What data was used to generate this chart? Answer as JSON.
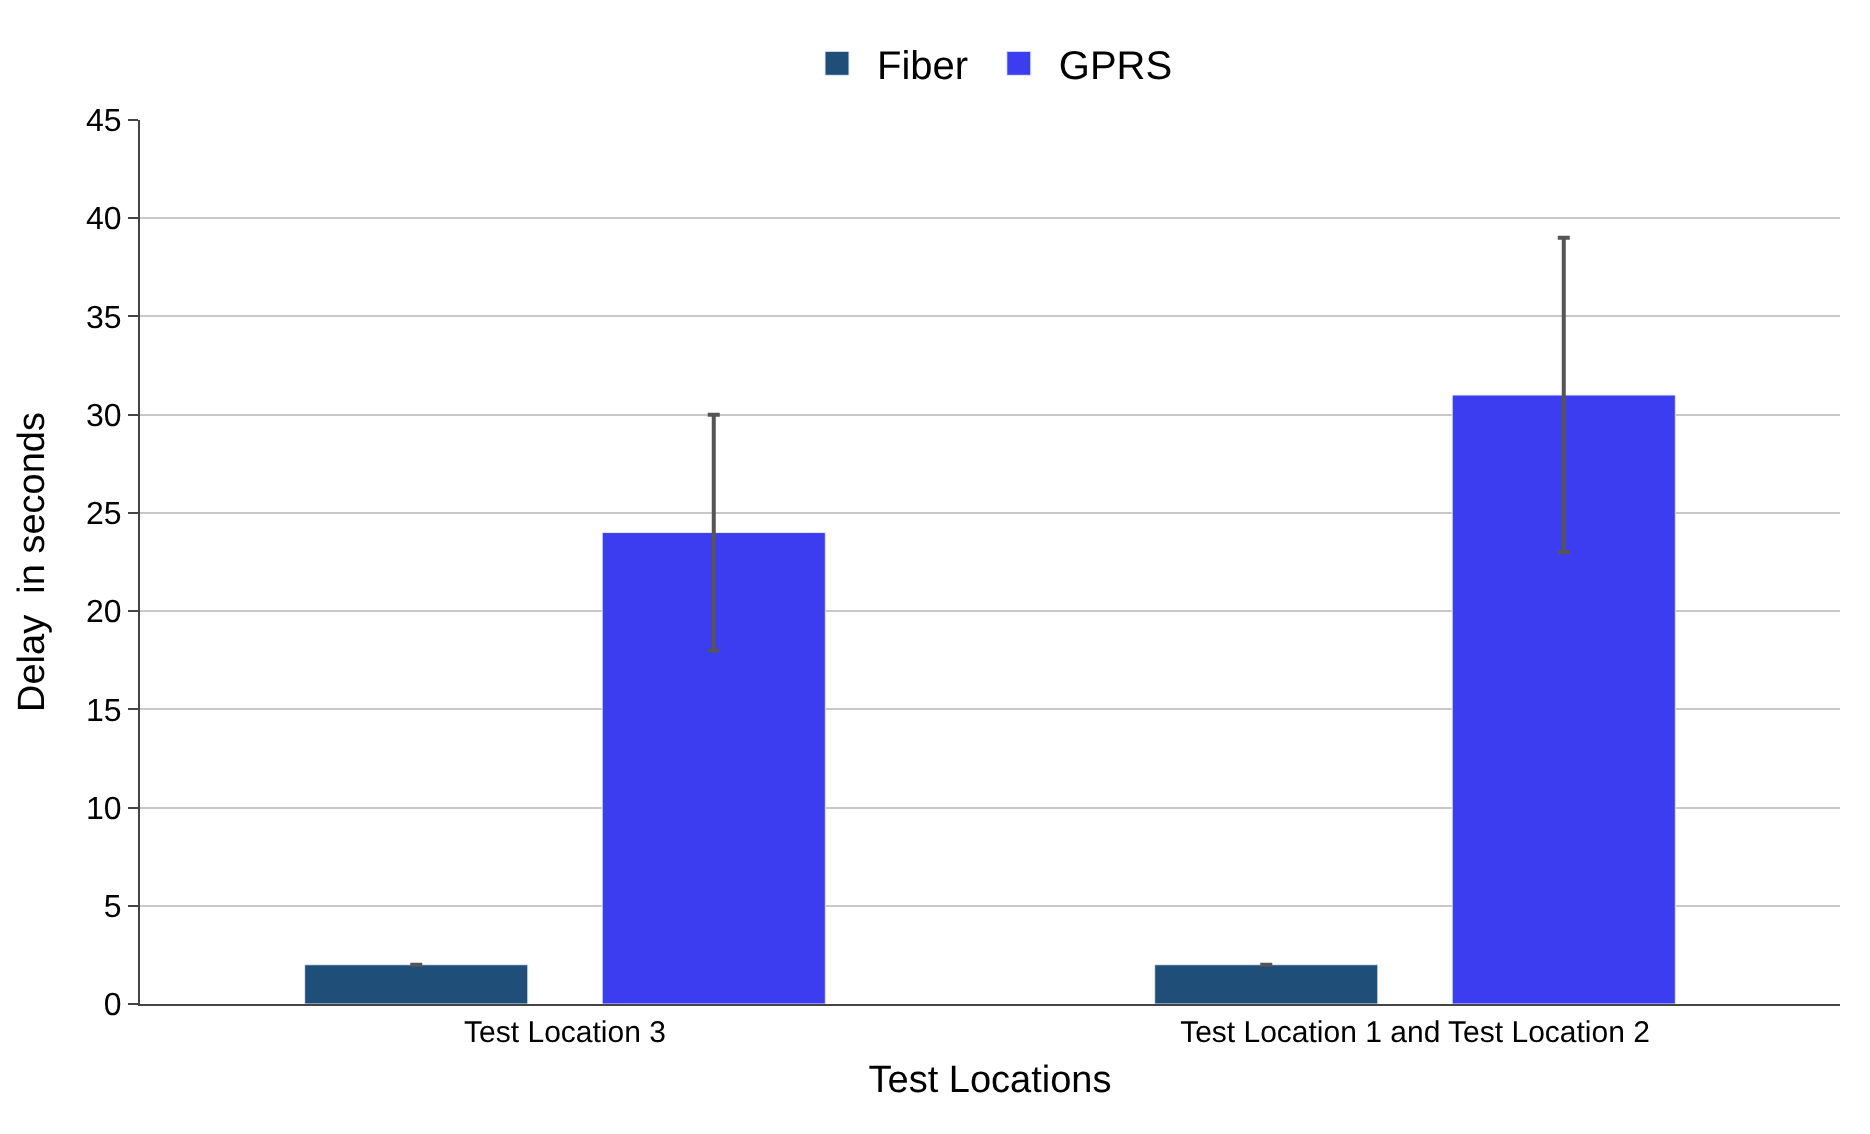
{
  "chart_data": {
    "type": "bar",
    "xlabel": "Test Locations",
    "ylabel": "Delay  in seconds",
    "categories": [
      "Test Location 3",
      "Test Location 1 and Test Location 2"
    ],
    "series": [
      {
        "name": "Fiber",
        "color": "#1f4e79",
        "values": [
          2,
          2
        ],
        "errors": [
          0,
          0
        ]
      },
      {
        "name": "GPRS",
        "color": "#3c3cf0",
        "values": [
          24,
          31
        ],
        "errors": [
          [
            18,
            30
          ],
          [
            23,
            39
          ]
        ]
      }
    ],
    "ylim": [
      0,
      45
    ],
    "yticks": [
      0,
      5,
      10,
      15,
      20,
      25,
      30,
      35,
      40,
      45
    ],
    "grid": "y",
    "legend": "top"
  }
}
